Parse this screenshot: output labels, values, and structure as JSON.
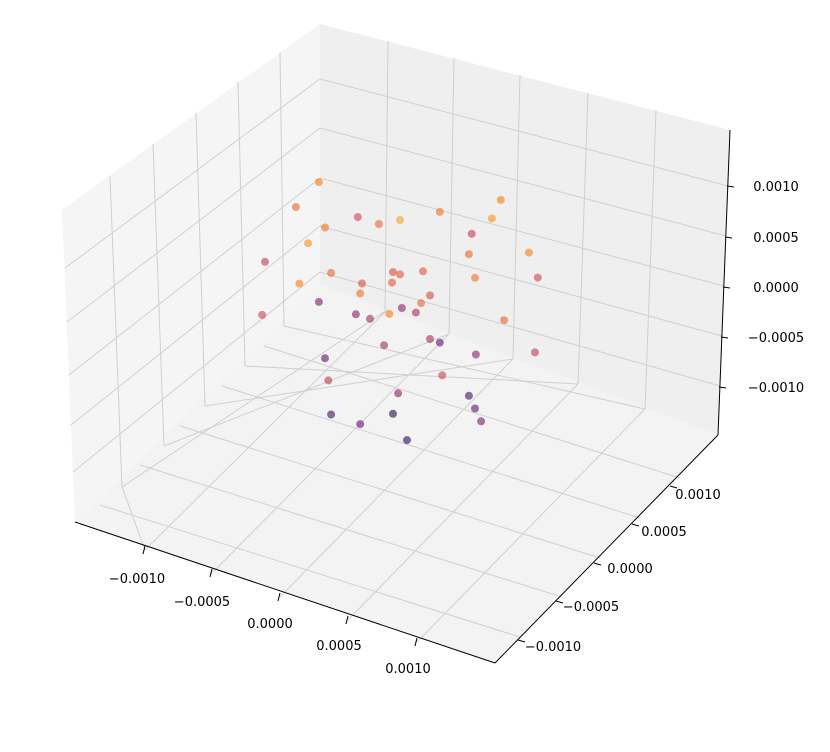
{
  "chart_data": {
    "type": "scatter",
    "title": "",
    "xlabel": "",
    "ylabel": "",
    "zlabel": "",
    "x_ticks": [
      "−0.0010",
      "−0.0005",
      "0.0000",
      "0.0005",
      "0.0010"
    ],
    "y_ticks": [
      "−0.0010",
      "−0.0005",
      "0.0000",
      "0.0005",
      "0.0010"
    ],
    "z_ticks": [
      "−0.0010",
      "−0.0005",
      "0.0000",
      "0.0005",
      "0.0010"
    ],
    "xlim": [
      -0.0014,
      0.0014
    ],
    "ylim": [
      -0.0014,
      0.0014
    ],
    "zlim": [
      -0.0014,
      0.0014
    ],
    "grid": true,
    "colormap": "inferno",
    "color_by": "z",
    "marker_alpha": 0.6,
    "points": [
      {
        "x": 0.0,
        "y": 0.0,
        "z": 0.0004
      },
      {
        "x": 0.0001,
        "y": 0.0001,
        "z": 0.0004
      },
      {
        "x": -0.0001,
        "y": 0.0001,
        "z": 0.0003
      },
      {
        "x": 0.0,
        "y": -0.0001,
        "z": 0.0004
      },
      {
        "x": 0.0002,
        "y": 0.0,
        "z": 0.0003
      },
      {
        "x": -0.0002,
        "y": -0.0001,
        "z": 0.0003
      },
      {
        "x": 0.0003,
        "y": 0.0003,
        "z": 0.0005
      },
      {
        "x": -0.0003,
        "y": 0.0003,
        "z": 0.0005
      },
      {
        "x": 0.0003,
        "y": -0.0003,
        "z": 0.0005
      },
      {
        "x": -0.0003,
        "y": -0.0003,
        "z": 0.0005
      },
      {
        "x": 0.0005,
        "y": 0.0,
        "z": 0.0006
      },
      {
        "x": -0.0005,
        "y": 0.0,
        "z": 0.0006
      },
      {
        "x": 0.0,
        "y": 0.0005,
        "z": 0.0006
      },
      {
        "x": 0.0,
        "y": -0.0005,
        "z": 0.0006
      },
      {
        "x": 0.0007,
        "y": 0.0003,
        "z": 0.0007
      },
      {
        "x": -0.0007,
        "y": 0.0003,
        "z": 0.0007
      },
      {
        "x": 0.0003,
        "y": 0.0007,
        "z": 0.0007
      },
      {
        "x": 0.0003,
        "y": -0.0007,
        "z": 0.0007
      },
      {
        "x": -0.0003,
        "y": -0.0007,
        "z": 0.0007
      },
      {
        "x": 0.0,
        "y": 0.0,
        "z": 0.0009
      },
      {
        "x": 0.0004,
        "y": 0.0004,
        "z": 0.0008
      },
      {
        "x": -0.0004,
        "y": -0.0004,
        "z": 0.0008
      },
      {
        "x": 0.0008,
        "y": -0.0002,
        "z": 0.0005
      },
      {
        "x": -0.0008,
        "y": 0.0002,
        "z": 0.0005
      },
      {
        "x": 0.0002,
        "y": 0.0,
        "z": -0.0001
      },
      {
        "x": -0.0002,
        "y": 0.0,
        "z": -0.0001
      },
      {
        "x": 0.0,
        "y": 0.0002,
        "z": -0.0001
      },
      {
        "x": 0.0,
        "y": -0.0002,
        "z": -0.0001
      },
      {
        "x": 0.0004,
        "y": 0.0002,
        "z": -0.0003
      },
      {
        "x": -0.0004,
        "y": 0.0002,
        "z": -0.0003
      },
      {
        "x": 0.0002,
        "y": -0.0004,
        "z": -0.0003
      },
      {
        "x": -0.0002,
        "y": 0.0004,
        "z": -0.0003
      },
      {
        "x": 0.0006,
        "y": 0.0006,
        "z": 0.0002
      },
      {
        "x": -0.0006,
        "y": 0.0006,
        "z": 0.0002
      },
      {
        "x": 0.0006,
        "y": -0.0006,
        "z": 0.0002
      },
      {
        "x": -0.0006,
        "y": -0.0006,
        "z": 0.0002
      },
      {
        "x": 0.0009,
        "y": 0.0,
        "z": 0.0001
      },
      {
        "x": -0.0009,
        "y": 0.0,
        "z": 0.0001
      },
      {
        "x": 0.0,
        "y": 0.0009,
        "z": 0.0001
      },
      {
        "x": 0.0,
        "y": -0.0009,
        "z": 0.0001
      },
      {
        "x": 0.0005,
        "y": 0.0,
        "z": -0.0006
      },
      {
        "x": -0.0005,
        "y": 0.0,
        "z": -0.0006
      },
      {
        "x": 0.0,
        "y": 0.0005,
        "z": -0.0006
      },
      {
        "x": 0.0,
        "y": -0.0005,
        "z": -0.0006
      },
      {
        "x": 0.0003,
        "y": 0.0003,
        "z": -0.0008
      },
      {
        "x": -0.0003,
        "y": -0.0003,
        "z": -0.0008
      },
      {
        "x": 0.0001,
        "y": -0.0001,
        "z": -0.001
      },
      {
        "x": -0.0001,
        "y": 0.0001,
        "z": -0.001
      },
      {
        "x": 0.0007,
        "y": -0.0003,
        "z": -0.0004
      },
      {
        "x": -0.0007,
        "y": 0.0003,
        "z": -0.0004
      }
    ]
  }
}
